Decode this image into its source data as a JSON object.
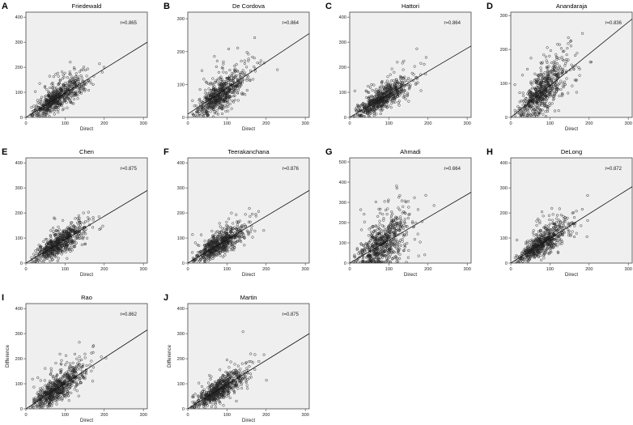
{
  "chart_data": [
    {
      "letter": "A",
      "title": "Friedewald",
      "r_label": "r=0.865",
      "type": "scatter",
      "xlabel": "Direct",
      "ylabel": "",
      "xlim": [
        0,
        310
      ],
      "ylim": [
        0,
        420
      ],
      "xticks": [
        0,
        100,
        200,
        300
      ],
      "yticks": [
        0,
        100,
        200,
        300,
        400
      ],
      "fit_line": {
        "x": [
          0,
          310
        ],
        "y": [
          0,
          300
        ]
      },
      "n_points": 650,
      "seed": 11,
      "slope": 0.95,
      "noise": 24
    },
    {
      "letter": "B",
      "title": "De Cordova",
      "r_label": "r=0.864",
      "type": "scatter",
      "xlabel": "Direct",
      "ylabel": "",
      "xlim": [
        0,
        310
      ],
      "ylim": [
        0,
        320
      ],
      "xticks": [
        0,
        100,
        200,
        300
      ],
      "yticks": [
        0,
        100,
        200,
        300
      ],
      "fit_line": {
        "x": [
          0,
          310
        ],
        "y": [
          10,
          255
        ]
      },
      "n_points": 650,
      "seed": 23,
      "slope": 0.82,
      "noise": 22
    },
    {
      "letter": "C",
      "title": "Hattori",
      "r_label": "r=0.864",
      "type": "scatter",
      "xlabel": "",
      "xlabel_hidden": true,
      "ylabel": "",
      "xlim": [
        0,
        310
      ],
      "ylim": [
        0,
        420
      ],
      "xticks": [
        0,
        100,
        200,
        300
      ],
      "yticks": [
        0,
        100,
        200,
        300,
        400
      ],
      "fit_line": {
        "x": [
          0,
          310
        ],
        "y": [
          0,
          285
        ]
      },
      "n_points": 650,
      "seed": 37,
      "slope": 0.92,
      "noise": 22
    },
    {
      "letter": "D",
      "title": "Anandaraja",
      "r_label": "r=0.836",
      "type": "scatter",
      "xlabel": "Direct",
      "ylabel": "",
      "xlim": [
        0,
        310
      ],
      "ylim": [
        0,
        310
      ],
      "xticks": [
        0,
        100,
        200,
        300
      ],
      "yticks": [
        0,
        100,
        200,
        300
      ],
      "fit_line": {
        "x": [
          0,
          310
        ],
        "y": [
          0,
          290
        ]
      },
      "n_points": 650,
      "seed": 49,
      "slope": 0.94,
      "noise": 30
    },
    {
      "letter": "E",
      "title": "Chen",
      "r_label": "r=0.875",
      "type": "scatter",
      "xlabel": "Direct",
      "ylabel": "",
      "xlim": [
        0,
        310
      ],
      "ylim": [
        0,
        420
      ],
      "xticks": [
        0,
        100,
        200,
        300
      ],
      "yticks": [
        0,
        100,
        200,
        300,
        400
      ],
      "fit_line": {
        "x": [
          0,
          310
        ],
        "y": [
          0,
          290
        ]
      },
      "n_points": 650,
      "seed": 61,
      "slope": 0.93,
      "noise": 22
    },
    {
      "letter": "F",
      "title": "Teerakanchana",
      "r_label": "r=0.876",
      "type": "scatter",
      "xlabel": "Direct",
      "ylabel": "",
      "xlim": [
        0,
        310
      ],
      "ylim": [
        0,
        420
      ],
      "xticks": [
        0,
        100,
        200,
        300
      ],
      "yticks": [
        0,
        100,
        200,
        300,
        400
      ],
      "fit_line": {
        "x": [
          0,
          310
        ],
        "y": [
          0,
          290
        ]
      },
      "n_points": 650,
      "seed": 73,
      "slope": 0.93,
      "noise": 22
    },
    {
      "letter": "G",
      "title": "Ahmadi",
      "r_label": "r=0.664",
      "type": "scatter",
      "xlabel": "Direct",
      "ylabel": "",
      "xlim": [
        0,
        310
      ],
      "ylim": [
        0,
        520
      ],
      "xticks": [
        0,
        100,
        200,
        300
      ],
      "yticks": [
        0,
        100,
        200,
        300,
        400,
        500
      ],
      "fit_line": {
        "x": [
          0,
          310
        ],
        "y": [
          0,
          350
        ]
      },
      "n_points": 650,
      "seed": 89,
      "slope": 1.12,
      "noise": 55
    },
    {
      "letter": "H",
      "title": "DeLong",
      "r_label": "r=0.872",
      "type": "scatter",
      "xlabel": "Direct",
      "ylabel": "",
      "xlim": [
        0,
        310
      ],
      "ylim": [
        0,
        420
      ],
      "xticks": [
        0,
        100,
        200,
        300
      ],
      "yticks": [
        0,
        100,
        200,
        300,
        400
      ],
      "fit_line": {
        "x": [
          0,
          310
        ],
        "y": [
          0,
          305
        ]
      },
      "n_points": 650,
      "seed": 97,
      "slope": 0.98,
      "noise": 22
    },
    {
      "letter": "I",
      "title": "Rao",
      "r_label": "r=0.862",
      "type": "scatter",
      "xlabel": "Direct",
      "ylabel": "Difference",
      "xlim": [
        0,
        310
      ],
      "ylim": [
        0,
        420
      ],
      "xticks": [
        0,
        100,
        200,
        300
      ],
      "yticks": [
        0,
        100,
        200,
        300,
        400
      ],
      "fit_line": {
        "x": [
          0,
          310
        ],
        "y": [
          0,
          315
        ]
      },
      "n_points": 650,
      "seed": 103,
      "slope": 1.0,
      "noise": 24
    },
    {
      "letter": "J",
      "title": "Martin",
      "r_label": "r=0.875",
      "type": "scatter",
      "xlabel": "Direct",
      "ylabel": "Difference",
      "xlim": [
        0,
        310
      ],
      "ylim": [
        0,
        420
      ],
      "xticks": [
        0,
        100,
        200,
        300
      ],
      "yticks": [
        0,
        100,
        200,
        300,
        400
      ],
      "fit_line": {
        "x": [
          0,
          310
        ],
        "y": [
          0,
          300
        ]
      },
      "n_points": 650,
      "seed": 113,
      "slope": 0.96,
      "noise": 22
    }
  ]
}
